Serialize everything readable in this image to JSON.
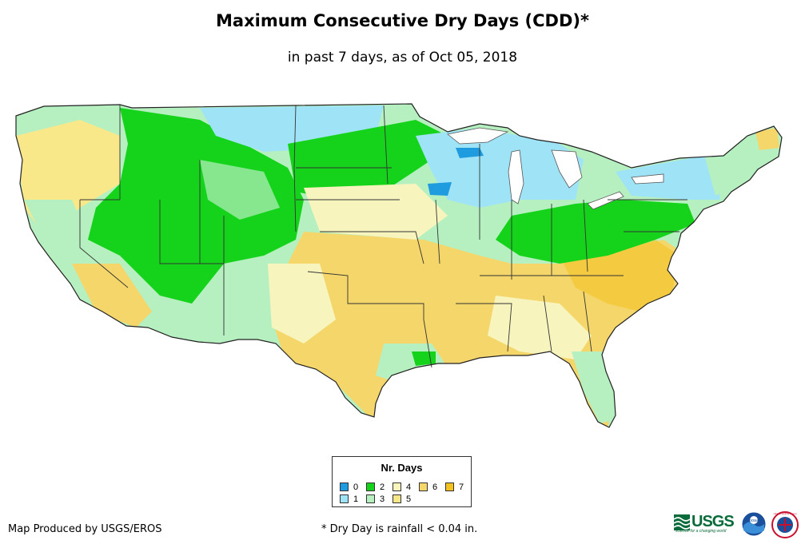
{
  "header": {
    "title": "Maximum Consecutive Dry Days (CDD)*",
    "subtitle": "in past 7 days, as of Oct 05, 2018"
  },
  "legend": {
    "title": "Nr. Days",
    "items": [
      {
        "label": "0",
        "color": "#1f9be0"
      },
      {
        "label": "1",
        "color": "#9fe3f7"
      },
      {
        "label": "2",
        "color": "#14d31a"
      },
      {
        "label": "3",
        "color": "#b6f0c0"
      },
      {
        "label": "4",
        "color": "#f7f5bd"
      },
      {
        "label": "5",
        "color": "#f9e88a"
      },
      {
        "label": "6",
        "color": "#f5d66a"
      },
      {
        "label": "7",
        "color": "#f3c21e"
      }
    ]
  },
  "footer": {
    "credit": "Map Produced by USGS/EROS",
    "footnote": "* Dry Day is rainfall < 0.04 in.",
    "usgs_logo": "USGS",
    "usgs_tagline": "science for a changing world",
    "noaa_logo": "noaa",
    "nws_logo": "national weather service"
  },
  "map": {
    "region": "Contiguous United States",
    "colors": {
      "ocean": "#ffffff",
      "border": "#333333",
      "state_line": "#555555",
      "water": "#ffffff"
    }
  }
}
